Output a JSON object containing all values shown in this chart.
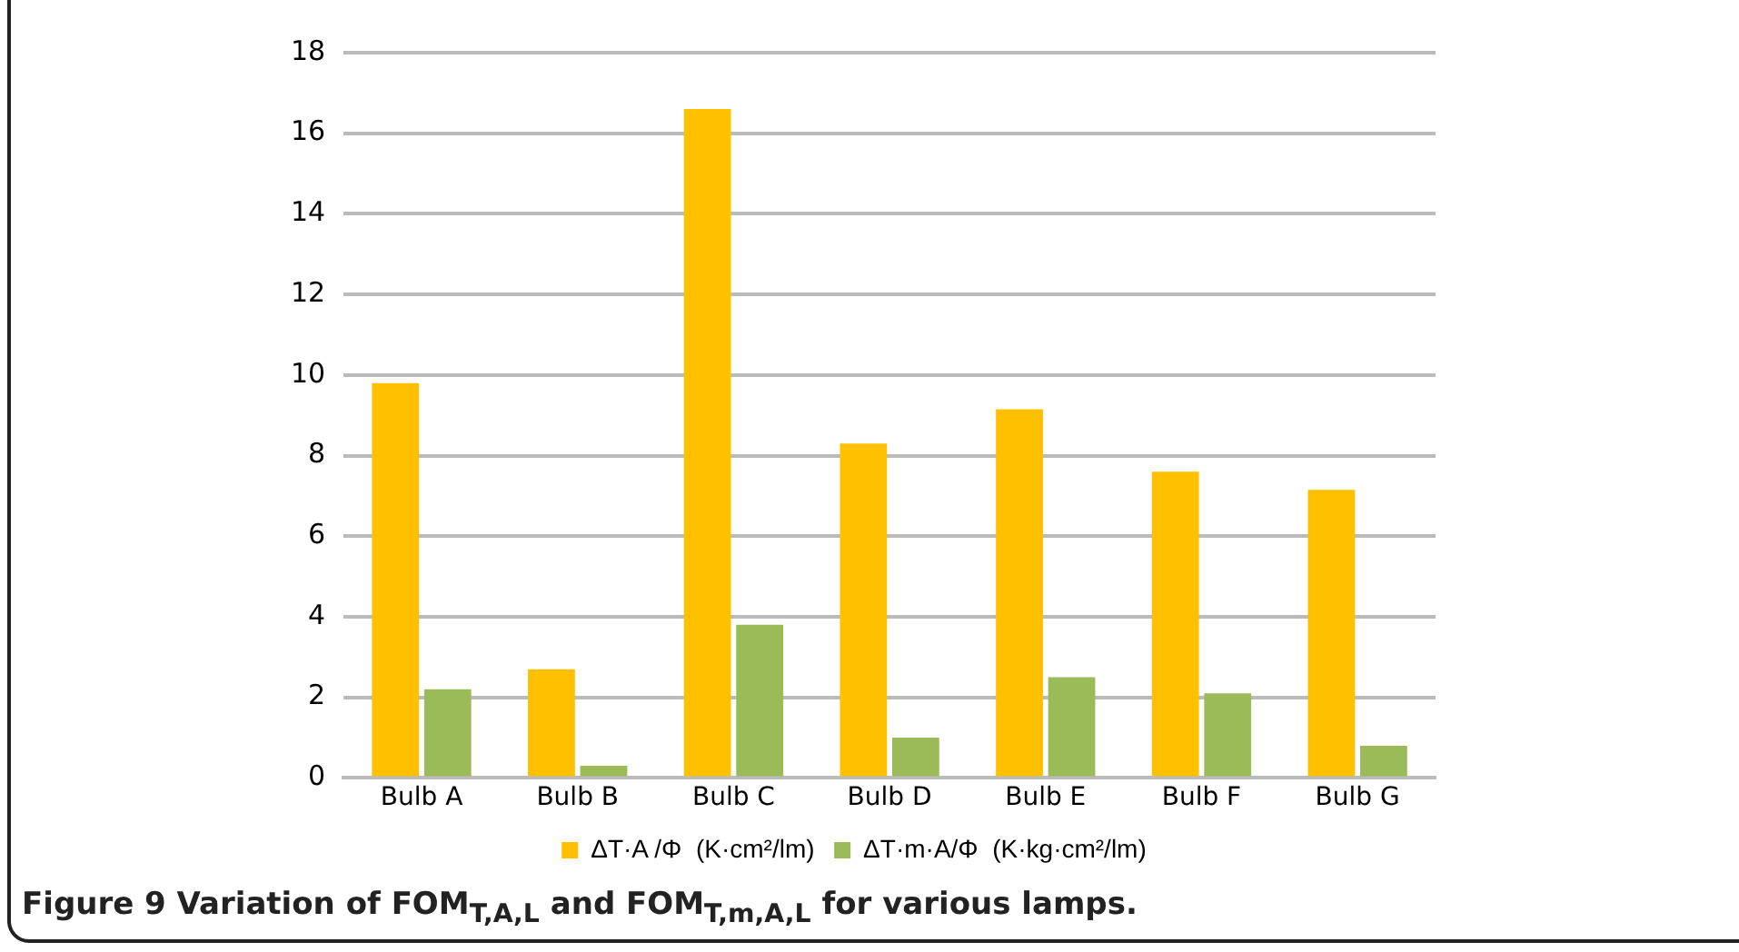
{
  "chart_data": {
    "type": "bar",
    "categories": [
      "Bulb A",
      "Bulb B",
      "Bulb C",
      "Bulb D",
      "Bulb E",
      "Bulb F",
      "Bulb G"
    ],
    "series": [
      {
        "name": "ΔT·A /Φ  (K·cm²/lm)",
        "color": "#ffc000",
        "values": [
          9.8,
          2.7,
          16.6,
          8.3,
          9.15,
          7.6,
          7.15
        ]
      },
      {
        "name": "ΔT·m·A/Φ  (K·kg·cm²/lm)",
        "color": "#9bbb59",
        "values": [
          2.2,
          0.3,
          3.8,
          1.0,
          2.5,
          2.1,
          0.8
        ]
      }
    ],
    "ylim": [
      0,
      18
    ],
    "yticks": [
      0,
      2,
      4,
      6,
      8,
      10,
      12,
      14,
      16,
      18
    ],
    "grid": "y",
    "legend": "bottom",
    "annotations": [
      "Figure 9 Variation of FOM$_{T,A,L}$ and FOM$_{T,m,A,L}$ for various lamps."
    ]
  }
}
